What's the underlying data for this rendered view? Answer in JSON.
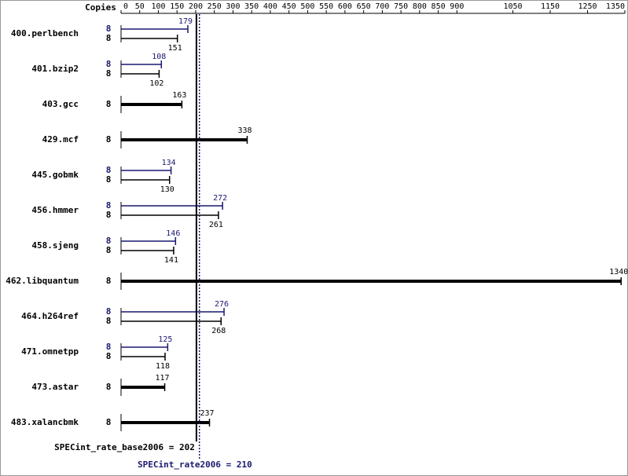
{
  "chart_data": {
    "type": "bar",
    "copies_label": "Copies",
    "categories": [
      "400.perlbench",
      "401.bzip2",
      "403.gcc",
      "429.mcf",
      "445.gobmk",
      "456.hmmer",
      "458.sjeng",
      "462.libquantum",
      "464.h264ref",
      "471.omnetpp",
      "473.astar",
      "483.xalancbmk"
    ],
    "peak": {
      "color": "#191970",
      "values": [
        179,
        108,
        null,
        null,
        134,
        272,
        146,
        null,
        276,
        125,
        null,
        null
      ],
      "copies": [
        8,
        8,
        null,
        null,
        8,
        8,
        8,
        null,
        8,
        8,
        null,
        null
      ]
    },
    "base": {
      "color": "#000000",
      "values": [
        151,
        102,
        163,
        338,
        130,
        261,
        141,
        1340,
        268,
        118,
        117,
        237
      ],
      "copies": [
        8,
        8,
        8,
        8,
        8,
        8,
        8,
        8,
        8,
        8,
        8,
        8
      ]
    },
    "xlim": [
      0,
      1350
    ],
    "xticks": [
      0,
      50,
      100,
      150,
      200,
      250,
      300,
      350,
      400,
      450,
      500,
      550,
      600,
      650,
      700,
      750,
      800,
      850,
      900,
      1050,
      1150,
      1250,
      1350
    ],
    "base_mean": {
      "value": 202,
      "label": "SPECint_rate_base2006 = 202"
    },
    "peak_mean": {
      "value": 210,
      "label": "SPECint_rate2006 = 210"
    }
  }
}
